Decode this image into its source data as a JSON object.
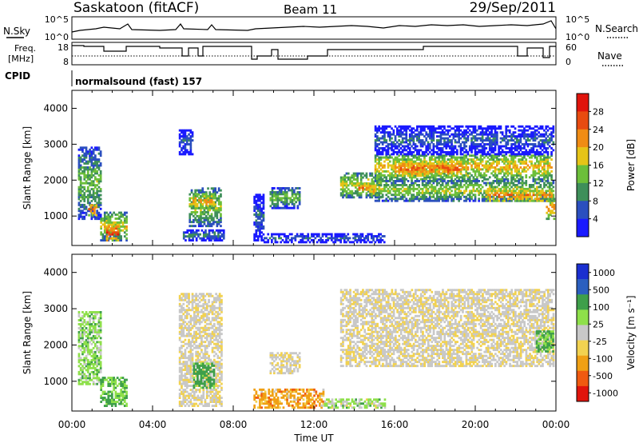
{
  "header": {
    "station": "Saskatoon (fitACF)",
    "beam": "Beam 11",
    "date": "29/Sep/2011"
  },
  "noise_panel": {
    "left_label": "N.Sky",
    "right_label": "N.Search",
    "left_ticks": [
      "10^5",
      "10^0"
    ],
    "right_ticks": [
      "10^5",
      "10^0"
    ]
  },
  "freq_panel": {
    "left_label_1": "Freq.",
    "left_label_2": "[MHz]",
    "right_label": "Nave",
    "left_ticks": [
      "18",
      "8"
    ],
    "right_ticks": [
      "60",
      "0"
    ]
  },
  "cpid": {
    "label": "CPID",
    "program": "normalsound (fast) 157"
  },
  "x_axis": {
    "label": "Time UT",
    "ticks": [
      "00:00",
      "04:00",
      "08:00",
      "12:00",
      "16:00",
      "20:00",
      "00:00"
    ]
  },
  "colors": {
    "power_scale": [
      "#1a1aff",
      "#2b4fbf",
      "#3e8f5a",
      "#6cbf3a",
      "#e6c417",
      "#f08c14",
      "#e84b10",
      "#e0140c"
    ],
    "velocity_scale": [
      "#e0140c",
      "#f05a10",
      "#f0a014",
      "#f2d250",
      "#c8c8c8",
      "#8ee04a",
      "#3e9f4a",
      "#2b5fbf",
      "#1a2fd0"
    ]
  },
  "chart_data": [
    {
      "type": "heatmap",
      "title": "",
      "xlabel": "Time UT",
      "ylabel": "Slant Range [km]",
      "quantity": "Power [dB]",
      "xlim_hours": [
        0,
        24
      ],
      "ylim_km": [
        180,
        4500
      ],
      "y_ticks": [
        1000,
        2000,
        3000,
        4000
      ],
      "colorbar_ticks": [
        "28",
        "24",
        "20",
        "16",
        "12",
        "8",
        "4"
      ],
      "colorbar_label": "Power [dB]",
      "colorbar_range": [
        0,
        32
      ],
      "regions": [
        {
          "t0": 0.3,
          "t1": 1.4,
          "r0": 900,
          "r1": 2900,
          "power": 14
        },
        {
          "t0": 0.8,
          "t1": 1.2,
          "r0": 1000,
          "r1": 1300,
          "power": 26
        },
        {
          "t0": 1.4,
          "t1": 2.7,
          "r0": 300,
          "r1": 1100,
          "power": 18
        },
        {
          "t0": 1.7,
          "t1": 2.3,
          "r0": 300,
          "r1": 700,
          "power": 28
        },
        {
          "t0": 5.3,
          "t1": 6.0,
          "r0": 2700,
          "r1": 3400,
          "power": 8
        },
        {
          "t0": 5.8,
          "t1": 7.4,
          "r0": 700,
          "r1": 1800,
          "power": 16
        },
        {
          "t0": 5.9,
          "t1": 7.0,
          "r0": 1200,
          "r1": 1600,
          "power": 22
        },
        {
          "t0": 5.5,
          "t1": 7.5,
          "r0": 300,
          "r1": 600,
          "power": 10
        },
        {
          "t0": 9.0,
          "t1": 9.5,
          "r0": 300,
          "r1": 1600,
          "power": 8
        },
        {
          "t0": 9.8,
          "t1": 11.3,
          "r0": 1200,
          "r1": 1800,
          "power": 14
        },
        {
          "t0": 9.5,
          "t1": 15.5,
          "r0": 250,
          "r1": 500,
          "power": 8
        },
        {
          "t0": 13.3,
          "t1": 15.3,
          "r0": 1500,
          "r1": 2200,
          "power": 18
        },
        {
          "t0": 14.2,
          "t1": 15.0,
          "r0": 1600,
          "r1": 1900,
          "power": 24
        },
        {
          "t0": 15.0,
          "t1": 23.8,
          "r0": 2000,
          "r1": 2700,
          "power": 20
        },
        {
          "t0": 16.0,
          "t1": 19.3,
          "r0": 2100,
          "r1": 2500,
          "power": 26
        },
        {
          "t0": 15.0,
          "t1": 23.9,
          "r0": 1400,
          "r1": 2000,
          "power": 16
        },
        {
          "t0": 20.5,
          "t1": 23.8,
          "r0": 1400,
          "r1": 1700,
          "power": 24
        },
        {
          "t0": 15.0,
          "t1": 23.9,
          "r0": 2700,
          "r1": 3500,
          "power": 8
        },
        {
          "t0": 23.5,
          "t1": 23.95,
          "r0": 900,
          "r1": 1500,
          "power": 22
        }
      ]
    },
    {
      "type": "heatmap",
      "title": "",
      "xlabel": "Time UT",
      "ylabel": "Slant Range [km]",
      "quantity": "Velocity [m s^-1]",
      "xlim_hours": [
        0,
        24
      ],
      "ylim_km": [
        180,
        4500
      ],
      "y_ticks": [
        1000,
        2000,
        3000,
        4000
      ],
      "colorbar_ticks": [
        "1000",
        "500",
        "100",
        "25",
        "-25",
        "-100",
        "-500",
        "-1000"
      ],
      "colorbar_label": "Velocity [m s⁻¹]",
      "regions": [
        {
          "t0": 0.3,
          "t1": 1.4,
          "r0": 900,
          "r1": 2900,
          "velocity": 60
        },
        {
          "t0": 1.4,
          "t1": 2.7,
          "r0": 300,
          "r1": 1100,
          "velocity": 100
        },
        {
          "t0": 5.3,
          "t1": 7.4,
          "r0": 300,
          "r1": 3400,
          "velocity": 0
        },
        {
          "t0": 6.0,
          "t1": 7.0,
          "r0": 800,
          "r1": 1500,
          "velocity": 150
        },
        {
          "t0": 9.0,
          "t1": 12.5,
          "r0": 250,
          "r1": 800,
          "velocity": -60
        },
        {
          "t0": 12.5,
          "t1": 15.5,
          "r0": 250,
          "r1": 500,
          "velocity": 50
        },
        {
          "t0": 9.8,
          "t1": 11.3,
          "r0": 1200,
          "r1": 1800,
          "velocity": 0
        },
        {
          "t0": 13.3,
          "t1": 23.9,
          "r0": 1400,
          "r1": 3500,
          "velocity": 0
        },
        {
          "t0": 23.0,
          "t1": 23.9,
          "r0": 1800,
          "r1": 2400,
          "velocity": 120
        }
      ]
    }
  ]
}
